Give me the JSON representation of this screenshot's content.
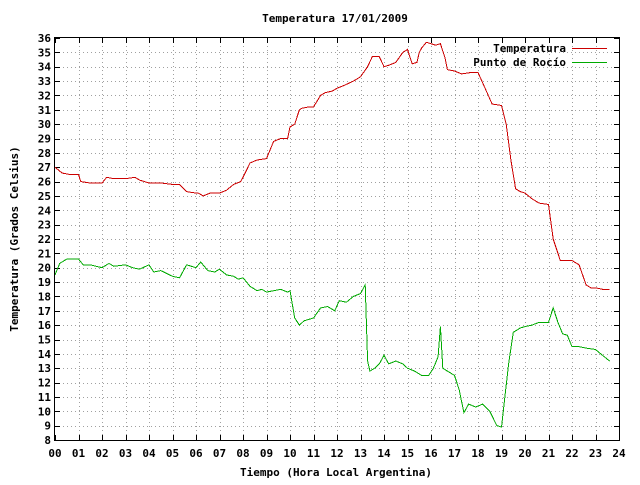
{
  "chart_data": {
    "type": "line",
    "title": "Temperatura 17/01/2009",
    "xlabel": "Tiempo (Hora Local Argentina)",
    "ylabel": "Temperatura (Grados Celsius)",
    "xlim": [
      0,
      24
    ],
    "ylim": [
      8,
      36
    ],
    "x_ticks": [
      0,
      1,
      2,
      3,
      4,
      5,
      6,
      7,
      8,
      9,
      10,
      11,
      12,
      13,
      14,
      15,
      16,
      17,
      18,
      19,
      20,
      21,
      22,
      23,
      24
    ],
    "x_tick_labels": [
      "00",
      "01",
      "02",
      "03",
      "04",
      "05",
      "06",
      "07",
      "08",
      "09",
      "10",
      "11",
      "12",
      "13",
      "14",
      "15",
      "16",
      "17",
      "18",
      "19",
      "20",
      "21",
      "22",
      "23",
      "24"
    ],
    "y_ticks": [
      8,
      9,
      10,
      11,
      12,
      13,
      14,
      15,
      16,
      17,
      18,
      19,
      20,
      21,
      22,
      23,
      24,
      25,
      26,
      27,
      28,
      29,
      30,
      31,
      32,
      33,
      34,
      35,
      36
    ],
    "grid": true,
    "legend_position": "top-right",
    "series": [
      {
        "name": "Temperatura",
        "color": "#cc0000",
        "x": [
          0,
          0.3,
          0.6,
          1.0,
          1.1,
          1.5,
          2.0,
          2.2,
          2.5,
          3.0,
          3.4,
          3.6,
          4.0,
          4.5,
          5.0,
          5.3,
          5.6,
          6.0,
          6.1,
          6.3,
          6.6,
          7.0,
          7.3,
          7.6,
          7.9,
          8.0,
          8.3,
          8.6,
          9.0,
          9.3,
          9.6,
          9.9,
          10.0,
          10.2,
          10.4,
          10.5,
          10.8,
          11.0,
          11.3,
          11.5,
          11.8,
          12.0,
          12.3,
          12.7,
          13.0,
          13.3,
          13.5,
          13.8,
          14.0,
          14.2,
          14.5,
          14.8,
          15.0,
          15.2,
          15.4,
          15.5,
          15.6,
          15.8,
          16.0,
          16.2,
          16.4,
          16.6,
          16.7,
          17.0,
          17.3,
          17.7,
          18.0,
          18.3,
          18.6,
          19.0,
          19.2,
          19.4,
          19.6,
          19.8,
          20.0,
          20.3,
          20.6,
          21.0,
          21.2,
          21.5,
          21.8,
          22.0,
          22.3,
          22.6,
          22.8,
          23.0,
          23.3,
          23.6
        ],
        "y": [
          27.0,
          26.6,
          26.5,
          26.5,
          26.0,
          25.9,
          25.9,
          26.3,
          26.2,
          26.2,
          26.3,
          26.1,
          25.9,
          25.9,
          25.8,
          25.8,
          25.3,
          25.2,
          25.2,
          25.0,
          25.2,
          25.2,
          25.4,
          25.8,
          26.0,
          26.3,
          27.3,
          27.5,
          27.6,
          28.8,
          29.0,
          29.0,
          29.8,
          30.0,
          31.0,
          31.1,
          31.2,
          31.2,
          32.0,
          32.2,
          32.3,
          32.5,
          32.7,
          33.0,
          33.3,
          34.0,
          34.7,
          34.7,
          34.0,
          34.1,
          34.3,
          35.0,
          35.2,
          34.2,
          34.3,
          35.0,
          35.3,
          35.7,
          35.6,
          35.5,
          35.6,
          34.6,
          33.8,
          33.7,
          33.5,
          33.6,
          33.6,
          32.5,
          31.4,
          31.3,
          30.0,
          27.5,
          25.5,
          25.3,
          25.2,
          24.8,
          24.5,
          24.4,
          22.0,
          20.5,
          20.5,
          20.5,
          20.2,
          18.8,
          18.6,
          18.6,
          18.5,
          18.5
        ]
      },
      {
        "name": "Punto de Rocío",
        "color": "#00aa00",
        "x": [
          0,
          0.2,
          0.5,
          1.0,
          1.2,
          1.5,
          2.0,
          2.3,
          2.5,
          3.0,
          3.3,
          3.6,
          4.0,
          4.2,
          4.5,
          5.0,
          5.3,
          5.6,
          6.0,
          6.2,
          6.5,
          6.8,
          7.0,
          7.3,
          7.6,
          7.8,
          8.0,
          8.3,
          8.6,
          8.8,
          9.0,
          9.3,
          9.6,
          9.9,
          10.0,
          10.2,
          10.4,
          10.6,
          11.0,
          11.3,
          11.6,
          11.9,
          12.1,
          12.4,
          12.7,
          13.0,
          13.2,
          13.3,
          13.4,
          13.6,
          13.8,
          14.0,
          14.2,
          14.5,
          14.8,
          15.0,
          15.3,
          15.6,
          15.9,
          16.1,
          16.3,
          16.4,
          16.5,
          16.7,
          17.0,
          17.2,
          17.4,
          17.6,
          17.9,
          18.2,
          18.5,
          18.8,
          19.0,
          19.3,
          19.5,
          19.8,
          20.0,
          20.3,
          20.6,
          21.0,
          21.2,
          21.4,
          21.6,
          21.8,
          22.0,
          22.3,
          22.6,
          23.0,
          23.3,
          23.6
        ],
        "y": [
          19.5,
          20.3,
          20.6,
          20.6,
          20.2,
          20.2,
          20.0,
          20.3,
          20.1,
          20.2,
          20.0,
          19.9,
          20.2,
          19.7,
          19.8,
          19.4,
          19.3,
          20.2,
          20.0,
          20.4,
          19.8,
          19.7,
          19.9,
          19.5,
          19.4,
          19.2,
          19.3,
          18.7,
          18.4,
          18.5,
          18.3,
          18.4,
          18.5,
          18.3,
          18.4,
          16.5,
          16.0,
          16.3,
          16.5,
          17.2,
          17.3,
          17.0,
          17.7,
          17.6,
          18.0,
          18.2,
          18.8,
          13.5,
          12.8,
          13.0,
          13.3,
          13.9,
          13.3,
          13.5,
          13.3,
          13.0,
          12.8,
          12.5,
          12.5,
          13.0,
          13.8,
          15.9,
          13.0,
          12.8,
          12.5,
          11.5,
          9.9,
          10.5,
          10.3,
          10.5,
          10.0,
          9.0,
          8.9,
          13.3,
          15.5,
          15.8,
          15.9,
          16.0,
          16.2,
          16.2,
          17.2,
          16.2,
          15.4,
          15.3,
          14.5,
          14.5,
          14.4,
          14.3,
          13.9,
          13.5
        ]
      }
    ]
  }
}
